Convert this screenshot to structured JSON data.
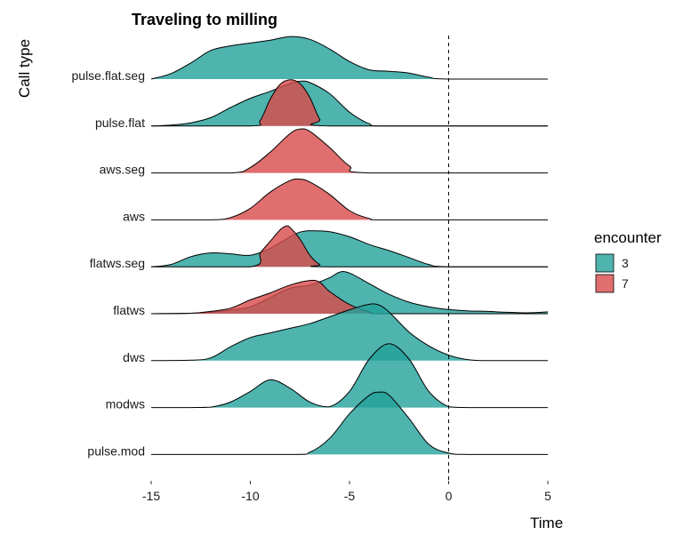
{
  "chart_data": {
    "type": "ridgeline",
    "title": "Traveling to milling",
    "xlabel": "Time",
    "ylabel": "Call type",
    "xlim": [
      -15,
      5
    ],
    "x_ticks": [
      "-15",
      "-10",
      "-5",
      "0",
      "5"
    ],
    "x_tick_values": [
      -15,
      -10,
      -5,
      0,
      5
    ],
    "vline_x": 0,
    "vline_style": "dashed",
    "grid": false,
    "legend": {
      "title": "encounter",
      "placement": "right",
      "entries": [
        {
          "label": "3",
          "color": "#23A09A"
        },
        {
          "label": "7",
          "color": "#D94A4A"
        }
      ]
    },
    "categories": [
      "pulse.flat.seg",
      "pulse.flat",
      "aws.seg",
      "aws",
      "flatws.seg",
      "flatws",
      "dws",
      "modws",
      "pulse.mod"
    ],
    "series": [
      {
        "category": "pulse.flat.seg",
        "encounter": "3",
        "color": "#23A09A",
        "points": [
          [
            -15,
            0
          ],
          [
            -14,
            0.12
          ],
          [
            -13,
            0.35
          ],
          [
            -12,
            0.62
          ],
          [
            -11,
            0.72
          ],
          [
            -10,
            0.78
          ],
          [
            -9,
            0.84
          ],
          [
            -8,
            0.92
          ],
          [
            -7,
            0.86
          ],
          [
            -6,
            0.65
          ],
          [
            -5,
            0.38
          ],
          [
            -4,
            0.2
          ],
          [
            -3,
            0.17
          ],
          [
            -2,
            0.13
          ],
          [
            -1,
            0.04
          ],
          [
            0,
            0
          ],
          [
            5,
            0
          ]
        ]
      },
      {
        "category": "pulse.flat",
        "encounter": "3",
        "color": "#23A09A",
        "points": [
          [
            -15,
            0
          ],
          [
            -14,
            0.02
          ],
          [
            -13,
            0.07
          ],
          [
            -12,
            0.18
          ],
          [
            -11,
            0.4
          ],
          [
            -10,
            0.6
          ],
          [
            -9,
            0.75
          ],
          [
            -8,
            0.92
          ],
          [
            -7.5,
            0.97
          ],
          [
            -7,
            0.94
          ],
          [
            -6,
            0.7
          ],
          [
            -5,
            0.3
          ],
          [
            -4,
            0.05
          ],
          [
            -3,
            0
          ],
          [
            5,
            0
          ]
        ]
      },
      {
        "category": "pulse.flat",
        "encounter": "7",
        "color": "#D94A4A",
        "points": [
          [
            -15,
            0
          ],
          [
            -10,
            0
          ],
          [
            -9.5,
            0.12
          ],
          [
            -9,
            0.58
          ],
          [
            -8.5,
            0.9
          ],
          [
            -8,
            1.0
          ],
          [
            -7.5,
            0.92
          ],
          [
            -7,
            0.62
          ],
          [
            -6.5,
            0.15
          ],
          [
            -6,
            0
          ],
          [
            5,
            0
          ]
        ]
      },
      {
        "category": "aws.seg",
        "encounter": "7",
        "color": "#D94A4A",
        "points": [
          [
            -15,
            0
          ],
          [
            -11,
            0
          ],
          [
            -10,
            0.12
          ],
          [
            -9,
            0.45
          ],
          [
            -8,
            0.85
          ],
          [
            -7.5,
            0.95
          ],
          [
            -7,
            0.9
          ],
          [
            -6,
            0.55
          ],
          [
            -5,
            0.15
          ],
          [
            -4,
            0
          ],
          [
            5,
            0
          ]
        ]
      },
      {
        "category": "aws",
        "encounter": "7",
        "color": "#D94A4A",
        "points": [
          [
            -15,
            0
          ],
          [
            -12,
            0
          ],
          [
            -11,
            0.05
          ],
          [
            -10,
            0.25
          ],
          [
            -9,
            0.6
          ],
          [
            -8,
            0.85
          ],
          [
            -7.5,
            0.88
          ],
          [
            -7,
            0.82
          ],
          [
            -6,
            0.55
          ],
          [
            -5,
            0.2
          ],
          [
            -4,
            0.03
          ],
          [
            -3,
            0
          ],
          [
            5,
            0
          ]
        ]
      },
      {
        "category": "flatws.seg",
        "encounter": "3",
        "color": "#23A09A",
        "points": [
          [
            -15,
            0
          ],
          [
            -14,
            0.05
          ],
          [
            -13,
            0.22
          ],
          [
            -12,
            0.3
          ],
          [
            -11,
            0.28
          ],
          [
            -10,
            0.25
          ],
          [
            -9,
            0.4
          ],
          [
            -8,
            0.65
          ],
          [
            -7.5,
            0.75
          ],
          [
            -7,
            0.78
          ],
          [
            -6,
            0.76
          ],
          [
            -5,
            0.65
          ],
          [
            -4,
            0.48
          ],
          [
            -3,
            0.35
          ],
          [
            -2,
            0.2
          ],
          [
            -1,
            0.05
          ],
          [
            0,
            0
          ],
          [
            5,
            0
          ]
        ]
      },
      {
        "category": "flatws.seg",
        "encounter": "7",
        "color": "#D94A4A",
        "points": [
          [
            -15,
            0
          ],
          [
            -10,
            0
          ],
          [
            -9.5,
            0.3
          ],
          [
            -9,
            0.55
          ],
          [
            -8.5,
            0.8
          ],
          [
            -8.2,
            0.88
          ],
          [
            -8,
            0.85
          ],
          [
            -7.5,
            0.6
          ],
          [
            -7,
            0.25
          ],
          [
            -6.5,
            0.05
          ],
          [
            -6,
            0
          ],
          [
            5,
            0
          ]
        ]
      },
      {
        "category": "flatws",
        "encounter": "3",
        "color": "#23A09A",
        "points": [
          [
            -15,
            0
          ],
          [
            -13,
            0.01
          ],
          [
            -12,
            0.03
          ],
          [
            -11,
            0.08
          ],
          [
            -10,
            0.15
          ],
          [
            -9,
            0.35
          ],
          [
            -8,
            0.55
          ],
          [
            -7,
            0.62
          ],
          [
            -6,
            0.78
          ],
          [
            -5.5,
            0.9
          ],
          [
            -5,
            0.88
          ],
          [
            -4,
            0.65
          ],
          [
            -3,
            0.42
          ],
          [
            -2,
            0.25
          ],
          [
            -1,
            0.15
          ],
          [
            0,
            0.09
          ],
          [
            1,
            0.06
          ],
          [
            2,
            0.05
          ],
          [
            3,
            0.03
          ],
          [
            4,
            0.02
          ],
          [
            5,
            0.04
          ]
        ]
      },
      {
        "category": "flatws",
        "encounter": "7",
        "color": "#D94A4A",
        "points": [
          [
            -15,
            0
          ],
          [
            -13,
            0.01
          ],
          [
            -12,
            0.05
          ],
          [
            -11,
            0.12
          ],
          [
            -10,
            0.3
          ],
          [
            -9,
            0.45
          ],
          [
            -8,
            0.62
          ],
          [
            -7,
            0.72
          ],
          [
            -6.5,
            0.68
          ],
          [
            -6,
            0.48
          ],
          [
            -5,
            0.2
          ],
          [
            -4,
            0.04
          ],
          [
            -3,
            0
          ],
          [
            5,
            0
          ]
        ]
      },
      {
        "category": "dws",
        "encounter": "3",
        "color": "#23A09A",
        "points": [
          [
            -15,
            0
          ],
          [
            -13,
            0.01
          ],
          [
            -12,
            0.06
          ],
          [
            -11,
            0.3
          ],
          [
            -10,
            0.5
          ],
          [
            -9,
            0.6
          ],
          [
            -8,
            0.7
          ],
          [
            -7,
            0.8
          ],
          [
            -6,
            0.95
          ],
          [
            -5,
            1.1
          ],
          [
            -4,
            1.22
          ],
          [
            -3.5,
            1.2
          ],
          [
            -3,
            1.05
          ],
          [
            -2,
            0.62
          ],
          [
            -1,
            0.32
          ],
          [
            0,
            0.12
          ],
          [
            1,
            0.02
          ],
          [
            2,
            0
          ],
          [
            5,
            0
          ]
        ]
      },
      {
        "category": "modws",
        "encounter": "3",
        "color": "#23A09A",
        "points": [
          [
            -15,
            0
          ],
          [
            -13,
            0
          ],
          [
            -12,
            0.01
          ],
          [
            -11,
            0.12
          ],
          [
            -10,
            0.35
          ],
          [
            -9,
            0.6
          ],
          [
            -8,
            0.42
          ],
          [
            -7,
            0.12
          ],
          [
            -6,
            0.02
          ],
          [
            -5,
            0.35
          ],
          [
            -4,
            1.05
          ],
          [
            -3,
            1.38
          ],
          [
            -2,
            1.05
          ],
          [
            -1,
            0.35
          ],
          [
            0,
            0.02
          ],
          [
            1,
            0
          ],
          [
            5,
            0
          ]
        ]
      },
      {
        "category": "pulse.mod",
        "encounter": "3",
        "color": "#23A09A",
        "points": [
          [
            -15,
            0
          ],
          [
            -8,
            0
          ],
          [
            -7,
            0.05
          ],
          [
            -6,
            0.35
          ],
          [
            -5,
            0.88
          ],
          [
            -4,
            1.28
          ],
          [
            -3.5,
            1.35
          ],
          [
            -3,
            1.28
          ],
          [
            -2,
            0.78
          ],
          [
            -1,
            0.22
          ],
          [
            0,
            0.03
          ],
          [
            1,
            0
          ],
          [
            5,
            0
          ]
        ]
      }
    ]
  }
}
